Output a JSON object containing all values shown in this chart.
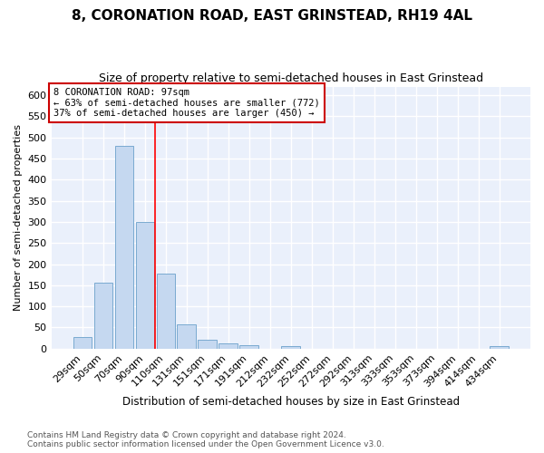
{
  "title": "8, CORONATION ROAD, EAST GRINSTEAD, RH19 4AL",
  "subtitle": "Size of property relative to semi-detached houses in East Grinstead",
  "xlabel": "Distribution of semi-detached houses by size in East Grinstead",
  "ylabel": "Number of semi-detached properties",
  "footer_line1": "Contains HM Land Registry data © Crown copyright and database right 2024.",
  "footer_line2": "Contains public sector information licensed under the Open Government Licence v3.0.",
  "categories": [
    "29sqm",
    "50sqm",
    "70sqm",
    "90sqm",
    "110sqm",
    "131sqm",
    "151sqm",
    "171sqm",
    "191sqm",
    "212sqm",
    "232sqm",
    "252sqm",
    "272sqm",
    "292sqm",
    "313sqm",
    "333sqm",
    "353sqm",
    "373sqm",
    "394sqm",
    "414sqm",
    "434sqm"
  ],
  "values": [
    28,
    157,
    480,
    300,
    178,
    58,
    21,
    13,
    8,
    0,
    6,
    0,
    0,
    0,
    0,
    0,
    0,
    0,
    0,
    0,
    6
  ],
  "bar_color": "#c5d8f0",
  "bar_edge_color": "#7aaad0",
  "bg_color": "#eaf0fb",
  "fig_bg_color": "#ffffff",
  "grid_color": "#ffffff",
  "annotation_text_line1": "8 CORONATION ROAD: 97sqm",
  "annotation_text_line2": "← 63% of semi-detached houses are smaller (772)",
  "annotation_text_line3": "37% of semi-detached houses are larger (450) →",
  "annotation_box_color": "#ffffff",
  "annotation_border_color": "#cc0000",
  "redline_x": 3.5,
  "ylim": [
    0,
    620
  ],
  "yticks": [
    0,
    50,
    100,
    150,
    200,
    250,
    300,
    350,
    400,
    450,
    500,
    550,
    600
  ]
}
